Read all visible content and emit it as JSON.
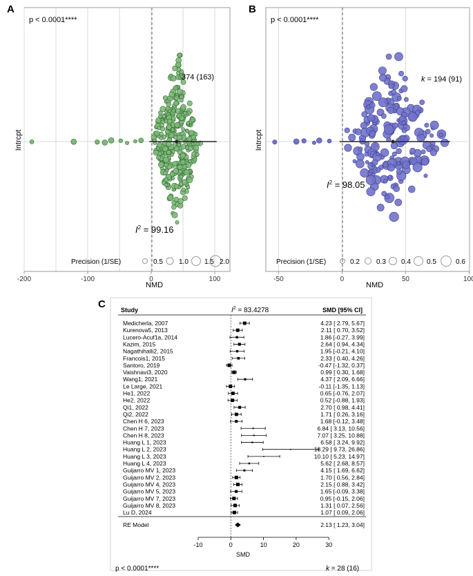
{
  "panel_labels": {
    "a": "A",
    "b": "B",
    "c": "C"
  },
  "colors": {
    "green_fill": "#7fb87a",
    "green_stroke": "#2d6a2d",
    "blue_fill": "#7173c9",
    "blue_stroke": "#3b3d8f",
    "grid": "#d9d9d9",
    "forest_stroke": "#000000"
  },
  "chart_data": [
    {
      "id": "A",
      "type": "scatter",
      "title": "",
      "pvalue": "p < 0.0001****",
      "xlabel": "NMD",
      "ylabel": "Intrcpt",
      "x_ticks": [
        "-200",
        "-100",
        "0",
        "100"
      ],
      "xlim": [
        -200,
        100
      ],
      "k_label": "374 (163)",
      "i2_symbol": "I",
      "i2_sup": "2",
      "i2_value": " = 99.16",
      "precision": {
        "label": "Precision (1/SE)",
        "values": [
          "0.5",
          "1.0",
          "1.5",
          "2.0"
        ]
      },
      "outlier_points": [
        -188,
        -122,
        -85,
        -73,
        -63,
        -48,
        -38,
        -25,
        -16
      ],
      "summary_estimate": 40,
      "summary_ci": [
        -3,
        103
      ],
      "n_points": 374
    },
    {
      "id": "B",
      "type": "scatter",
      "title": "",
      "pvalue": "p < 0.0001****",
      "xlabel": "NMD",
      "ylabel": "Intrcpt",
      "x_ticks": [
        "-50",
        "0",
        "50",
        "100"
      ],
      "xlim": [
        -60,
        100
      ],
      "k_label": "194 (91)",
      "k_symbol": "k",
      "k_eq": " = ",
      "i2_symbol": "I",
      "i2_sup": "2",
      "i2_value": " = 98.05",
      "precision": {
        "label": "Precision (1/SE)",
        "values": [
          "0.2",
          "0.3",
          "0.4",
          "0.5",
          "0.6"
        ]
      },
      "outlier_points": [
        -53,
        -36,
        -30,
        -22,
        -18,
        -10
      ],
      "summary_estimate": 40,
      "summary_ci": [
        -2,
        85
      ],
      "n_points": 194
    },
    {
      "id": "C",
      "type": "forest",
      "col_study": "Study",
      "col_smd": "SMD [95% CI]",
      "i2_symbol": "I",
      "i2_sup": "2",
      "i2_value": " = 83.4278",
      "xlabel": "SMD",
      "x_ticks": [
        "-10",
        "0",
        "10",
        "20",
        "30"
      ],
      "xlim": [
        -10,
        30
      ],
      "studies": [
        {
          "name": "Medicherla, 2007",
          "est": 4.23,
          "lo": 2.79,
          "hi": 5.67,
          "ci": "4.23 [ 2.79, 5.67]"
        },
        {
          "name": "Kurenova5, 2013",
          "est": 2.11,
          "lo": 0.7,
          "hi": 3.52,
          "ci": "2.11 [ 0.70, 3.52]"
        },
        {
          "name": "Lucero-Acuf1a, 2014",
          "est": 1.86,
          "lo": -0.27,
          "hi": 3.99,
          "ci": "1.86 [-0.27, 3.99]"
        },
        {
          "name": "Kazim, 2015",
          "est": 2.64,
          "lo": 0.94,
          "hi": 4.34,
          "ci": "2.64 [ 0.94, 4.34]"
        },
        {
          "name": "Nagathihalli2, 2015",
          "est": 1.95,
          "lo": -0.21,
          "hi": 4.1,
          "ci": "1.95 [-0.21, 4.10]"
        },
        {
          "name": "Francois1, 2015",
          "est": 2.33,
          "lo": 0.4,
          "hi": 4.26,
          "ci": "2.33 [ 0.40, 4.26]"
        },
        {
          "name": "Santoro, 2019",
          "est": -0.47,
          "lo": -1.32,
          "hi": 0.37,
          "ci": "-0.47 [-1.32, 0.37]"
        },
        {
          "name": "Vaishnavi3, 2020",
          "est": 0.99,
          "lo": 0.3,
          "hi": 1.68,
          "ci": "0.99 [ 0.30, 1.68]"
        },
        {
          "name": "Wang1, 2021",
          "est": 4.37,
          "lo": 2.09,
          "hi": 6.66,
          "ci": "4.37 [ 2.09, 6.66]"
        },
        {
          "name": "Le Large, 2021",
          "est": -0.11,
          "lo": -1.35,
          "hi": 1.13,
          "ci": "-0.11 [-1.35, 1.13]"
        },
        {
          "name": "He1, 2022",
          "est": 0.65,
          "lo": -0.76,
          "hi": 2.07,
          "ci": "0.65 [-0.76, 2.07]"
        },
        {
          "name": "He2, 2022",
          "est": 0.52,
          "lo": -0.88,
          "hi": 1.93,
          "ci": "0.52 [-0.88, 1.93]"
        },
        {
          "name": "Qi1, 2022",
          "est": 2.7,
          "lo": 0.98,
          "hi": 4.41,
          "ci": "2.70 [ 0.98, 4.41]"
        },
        {
          "name": "Qi2, 2022",
          "est": 1.71,
          "lo": 0.26,
          "hi": 3.16,
          "ci": "1.71 [ 0.26, 3.16]"
        },
        {
          "name": "Chen H 6, 2023",
          "est": 1.68,
          "lo": -0.12,
          "hi": 3.48,
          "ci": "1.68 [-0.12, 3.48]"
        },
        {
          "name": "Chen H 7, 2023",
          "est": 6.84,
          "lo": 3.13,
          "hi": 10.56,
          "ci": "6.84 [ 3.13, 10.56]"
        },
        {
          "name": "Chen H 8, 2023",
          "est": 7.07,
          "lo": 3.25,
          "hi": 10.88,
          "ci": "7.07 [ 3.25, 10.88]"
        },
        {
          "name": "Huang L 1, 2023",
          "est": 6.58,
          "lo": 3.24,
          "hi": 9.92,
          "ci": "6.58 [ 3.24, 9.92]"
        },
        {
          "name": "Huang L 2, 2023",
          "est": 18.29,
          "lo": 9.73,
          "hi": 26.86,
          "ci": "18.29 [ 9.73, 26.86]"
        },
        {
          "name": "Huang L 3, 2023",
          "est": 10.1,
          "lo": 5.23,
          "hi": 14.97,
          "ci": "10.10 [ 5.23, 14.97]"
        },
        {
          "name": "Huang L 4, 2023",
          "est": 5.62,
          "lo": 2.68,
          "hi": 8.57,
          "ci": "5.62 [ 2.68, 8.57]"
        },
        {
          "name": "Guijarro MV 1, 2023",
          "est": 4.15,
          "lo": 1.69,
          "hi": 6.62,
          "ci": "4.15 [ 1.69, 6.62]"
        },
        {
          "name": "Guijarro MV 2, 2023",
          "est": 1.7,
          "lo": 0.56,
          "hi": 2.84,
          "ci": "1.70 [ 0.56, 2.84]"
        },
        {
          "name": "Guijarro MV 4, 2023",
          "est": 2.15,
          "lo": 0.88,
          "hi": 3.42,
          "ci": "2.15 [ 0.88, 3.42]"
        },
        {
          "name": "Guijarro MV 5, 2023",
          "est": 1.65,
          "lo": -0.09,
          "hi": 3.38,
          "ci": "1.65 [-0.09, 3.38]"
        },
        {
          "name": "Guijarro MV 7, 2023",
          "est": 0.95,
          "lo": -0.15,
          "hi": 2.06,
          "ci": "0.95 [-0.15, 2.06]"
        },
        {
          "name": "Guijarro MV 8, 2023",
          "est": 1.31,
          "lo": 0.07,
          "hi": 2.56,
          "ci": "1.31 [ 0.07, 2.56]"
        },
        {
          "name": "Lu D, 2024",
          "est": 1.07,
          "lo": 0.09,
          "hi": 2.06,
          "ci": "1.07 [ 0.09, 2.06]"
        }
      ],
      "re_model": {
        "name": "RE Model",
        "est": 2.13,
        "lo": 1.23,
        "hi": 3.04,
        "ci": "2.13 [ 1.23, 3.04]"
      },
      "pvalue": "p < 0.0001****",
      "k_symbol": "k",
      "k_value": " = 28 (16)"
    }
  ]
}
